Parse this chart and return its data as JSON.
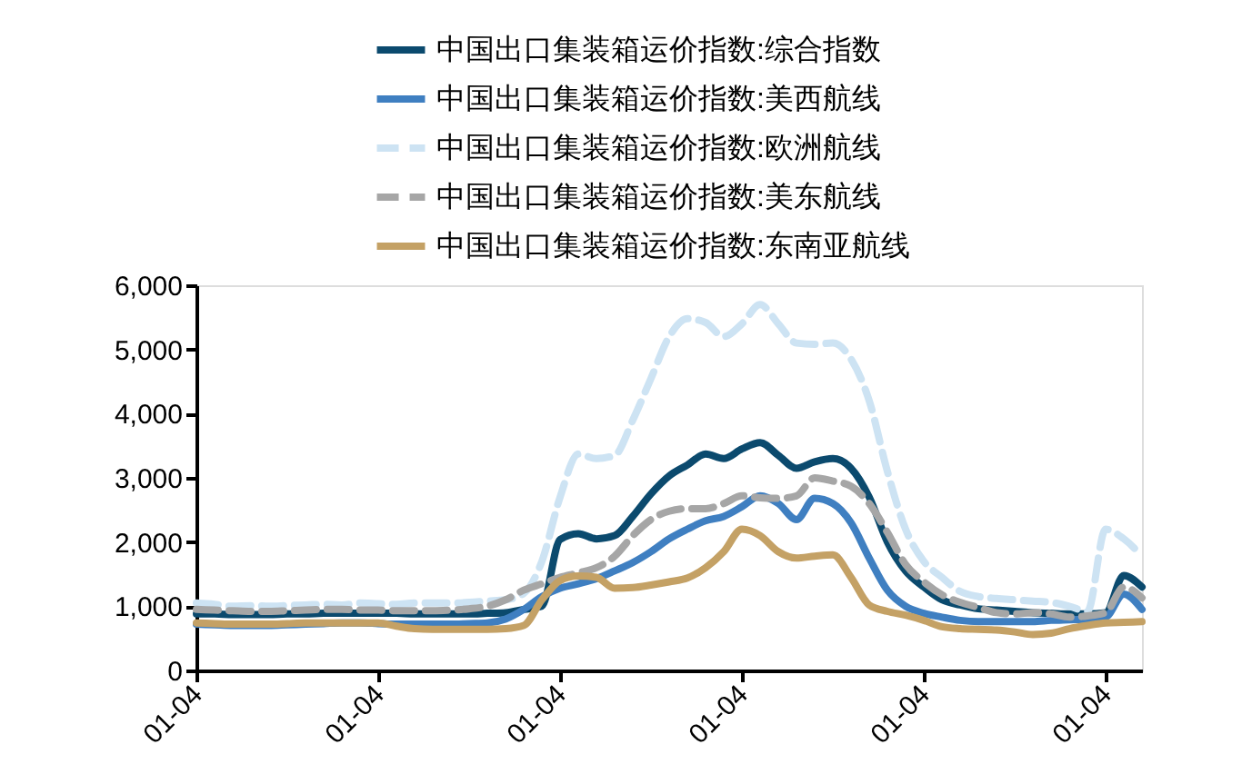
{
  "chart_data": {
    "type": "line",
    "legend": "top",
    "grid": false,
    "marker": "none",
    "categories": [
      "01-04",
      null,
      null,
      null,
      null,
      null,
      null,
      null,
      null,
      null,
      "01-04",
      null,
      null,
      null,
      null,
      null,
      null,
      null,
      null,
      null,
      "01-04",
      null,
      null,
      null,
      null,
      null,
      null,
      null,
      null,
      null,
      "01-04",
      null,
      null,
      null,
      null,
      null,
      null,
      null,
      null,
      null,
      "01-04",
      null,
      null,
      null,
      null,
      null,
      null,
      null,
      null,
      null,
      "01-04",
      null,
      null
    ],
    "ylim": [
      0,
      6000
    ],
    "yticks": [
      0,
      {
        "value": 1000,
        "label": "1,000"
      },
      {
        "value": 2000,
        "label": "2,000"
      },
      {
        "value": 3000,
        "label": "3,000"
      },
      {
        "value": 4000,
        "label": "4,000"
      },
      {
        "value": 5000,
        "label": "5,000"
      },
      {
        "value": 6000,
        "label": "6,000"
      }
    ],
    "series": [
      {
        "name": "中国出口集装箱运价指数:综合指数",
        "color": "#0b4a6e",
        "line_style": "solid",
        "values": [
          880,
          880,
          870,
          870,
          870,
          880,
          880,
          890,
          890,
          890,
          890,
          890,
          880,
          880,
          880,
          880,
          890,
          900,
          950,
          1000,
          2040,
          2130,
          2050,
          2100,
          2400,
          2750,
          3030,
          3200,
          3370,
          3300,
          3450,
          3550,
          3350,
          3150,
          3250,
          3300,
          3150,
          2700,
          2000,
          1550,
          1300,
          1100,
          1020,
          960,
          940,
          920,
          900,
          890,
          880,
          880,
          900,
          1480,
          1300
        ]
      },
      {
        "name": "中国出口集装箱运价指数:美西航线",
        "color": "#3f7fc1",
        "line_style": "solid",
        "values": [
          720,
          710,
          700,
          700,
          700,
          710,
          720,
          730,
          740,
          740,
          730,
          720,
          720,
          720,
          720,
          730,
          740,
          800,
          950,
          1150,
          1280,
          1350,
          1430,
          1550,
          1680,
          1850,
          2050,
          2200,
          2330,
          2400,
          2550,
          2720,
          2600,
          2350,
          2680,
          2600,
          2300,
          1750,
          1250,
          1000,
          890,
          830,
          780,
          760,
          760,
          760,
          760,
          780,
          790,
          800,
          830,
          1190,
          950
        ]
      },
      {
        "name": "中国出口集装箱运价指数:欧洲航线",
        "color": "#cde3f3",
        "line_style": "dashed",
        "values": [
          1050,
          1030,
          1000,
          1010,
          1000,
          1010,
          1020,
          1030,
          1020,
          1050,
          1040,
          1030,
          1050,
          1050,
          1050,
          1060,
          1080,
          1100,
          1200,
          1700,
          2700,
          3370,
          3300,
          3350,
          3900,
          4550,
          5200,
          5480,
          5420,
          5200,
          5400,
          5700,
          5400,
          5100,
          5080,
          5100,
          4850,
          4200,
          3100,
          2200,
          1700,
          1450,
          1230,
          1150,
          1120,
          1100,
          1080,
          1060,
          1000,
          920,
          2200,
          2050,
          1780
        ]
      },
      {
        "name": "中国出口集装箱运价指数:美东航线",
        "color": "#a6a6a6",
        "line_style": "dashed",
        "values": [
          950,
          940,
          930,
          920,
          920,
          930,
          940,
          950,
          950,
          940,
          940,
          930,
          930,
          930,
          940,
          960,
          1000,
          1100,
          1250,
          1350,
          1450,
          1520,
          1600,
          1780,
          2100,
          2350,
          2480,
          2520,
          2520,
          2600,
          2720,
          2690,
          2680,
          2720,
          3000,
          2950,
          2870,
          2600,
          2150,
          1650,
          1380,
          1180,
          1060,
          980,
          900,
          880,
          900,
          880,
          830,
          850,
          900,
          1300,
          1130
        ]
      },
      {
        "name": "中国出口集装箱运价指数:东南亚航线",
        "color": "#c4a165",
        "line_style": "solid",
        "values": [
          740,
          730,
          720,
          720,
          720,
          730,
          740,
          740,
          740,
          740,
          740,
          690,
          650,
          640,
          640,
          640,
          640,
          650,
          700,
          1100,
          1400,
          1470,
          1450,
          1280,
          1290,
          1330,
          1380,
          1440,
          1600,
          1850,
          2200,
          2100,
          1850,
          1750,
          1780,
          1800,
          1450,
          1020,
          920,
          860,
          780,
          680,
          650,
          640,
          630,
          600,
          560,
          580,
          650,
          700,
          740,
          750,
          760
        ]
      }
    ]
  }
}
